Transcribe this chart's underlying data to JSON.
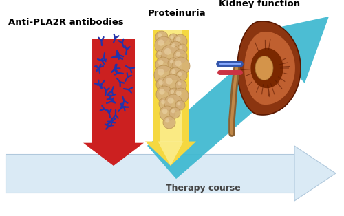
{
  "bg_color": "#ffffff",
  "label_antipla2r": "Anti-PLA2R antibodies",
  "label_proteinuria": "Proteinuria",
  "label_kidney": "Kidney function",
  "label_therapy": "Therapy course",
  "arrow_red": "#cc2020",
  "arrow_yellow_outer": "#f5d840",
  "arrow_yellow_inner": "#fdf3a0",
  "arrow_blue": "#3db8d0",
  "arrow_therapy_fill": "#daeaf5",
  "arrow_therapy_edge": "#b0c8dc",
  "antibody_color": "#2233aa",
  "bubble_fill": "#d4b07a",
  "bubble_edge": "#b89050",
  "kidney_outer": "#8B3510",
  "kidney_inner": "#b04520",
  "kidney_cortex": "#c06030",
  "pelvis_fill": "#d4944a",
  "ureter_color": "#8B6030",
  "vessel_blue": "#3355aa",
  "vessel_red": "#cc2222",
  "figsize": [
    5.0,
    3.14
  ],
  "dpi": 100
}
